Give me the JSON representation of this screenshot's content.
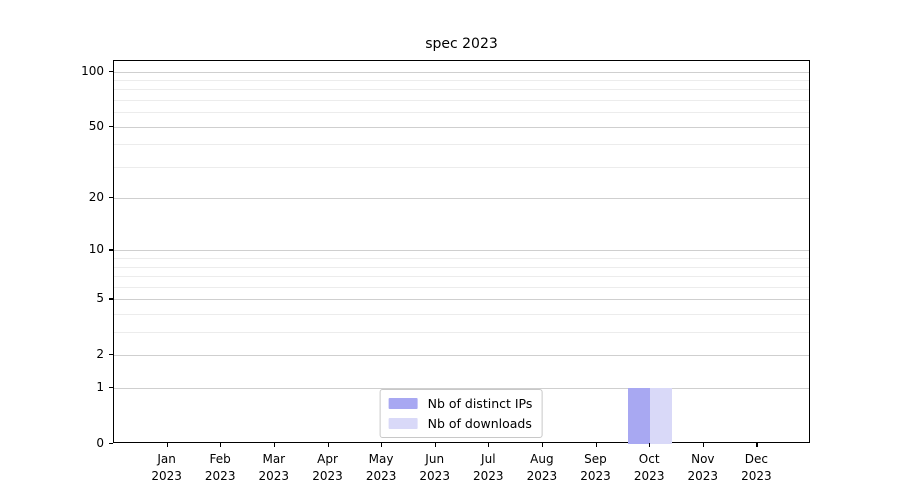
{
  "title": "spec 2023",
  "chart_data": {
    "type": "bar",
    "title": "spec 2023",
    "categories": [
      "Jan",
      "Feb",
      "Mar",
      "Apr",
      "May",
      "Jun",
      "Jul",
      "Aug",
      "Sep",
      "Oct",
      "Nov",
      "Dec"
    ],
    "category_year": "2023",
    "series": [
      {
        "name": "Nb of distinct IPs",
        "color": "#a8a8f2",
        "values": [
          0,
          0,
          0,
          0,
          0,
          0,
          0,
          0,
          0,
          1,
          0,
          0
        ]
      },
      {
        "name": "Nb of downloads",
        "color": "#d9d9f8",
        "values": [
          0,
          0,
          0,
          0,
          0,
          0,
          0,
          0,
          0,
          1,
          0,
          0
        ]
      }
    ],
    "y_scale": "log1p",
    "y_ticks": [
      0,
      1,
      2,
      5,
      10,
      20,
      50,
      100
    ],
    "y_minor_gridlines": [
      3,
      4,
      6,
      7,
      8,
      9,
      30,
      40,
      60,
      70,
      80,
      90
    ],
    "ylim": [
      0,
      114
    ],
    "xlabel": "",
    "ylabel": "",
    "grid": "horizontal",
    "legend_position": "lower center",
    "colors": {
      "spine": "#000000",
      "grid_major": "#cfcfcf",
      "grid_minor": "#ececec",
      "text": "#000000",
      "legend_border": "#c8c8c8"
    }
  }
}
